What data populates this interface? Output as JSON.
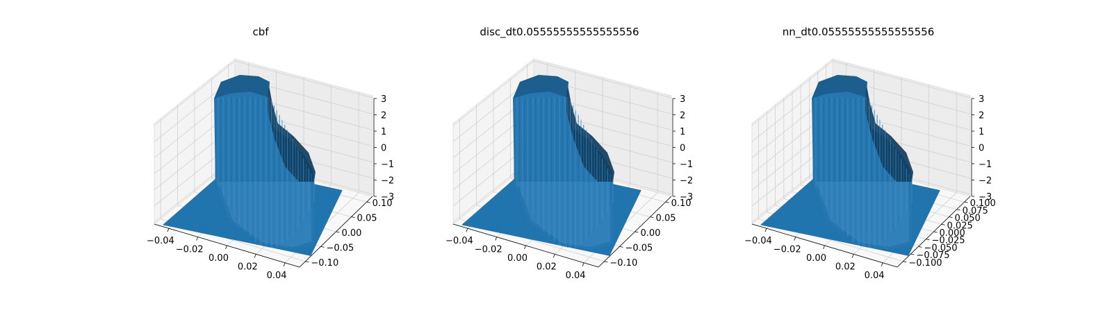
{
  "chart_data": [
    {
      "type": "surface3d",
      "title": "cbf",
      "color": "#1f77b4",
      "x_ticks": [
        "−0.04",
        "−0.02",
        "0.00",
        "0.02",
        "0.04"
      ],
      "y_ticks": [
        "−0.10",
        "−0.05",
        "0.00",
        "0.05",
        "0.10"
      ],
      "z_ticks": [
        "−3",
        "−2",
        "−1",
        "0",
        "1",
        "2",
        "3"
      ],
      "xlim": [
        -0.05,
        0.05
      ],
      "ylim": [
        -0.1,
        0.1
      ],
      "zlim": [
        -3,
        3
      ],
      "grid": true
    },
    {
      "type": "surface3d",
      "title": "disc_dt0.05555555555555556",
      "color": "#1f77b4",
      "x_ticks": [
        "−0.04",
        "−0.02",
        "0.00",
        "0.02",
        "0.04"
      ],
      "y_ticks": [
        "−0.10",
        "−0.05",
        "0.00",
        "0.05",
        "0.10"
      ],
      "z_ticks": [
        "−3",
        "−2",
        "−1",
        "0",
        "1",
        "2",
        "3"
      ],
      "xlim": [
        -0.05,
        0.05
      ],
      "ylim": [
        -0.1,
        0.1
      ],
      "zlim": [
        -3,
        3
      ],
      "grid": true
    },
    {
      "type": "surface3d",
      "title": "nn_dt0.05555555555555556",
      "color": "#1f77b4",
      "x_ticks": [
        "−0.04",
        "−0.02",
        "0.00",
        "0.02",
        "0.04"
      ],
      "y_ticks": [
        "−0.100",
        "−0.075",
        "−0.050",
        "−0.025",
        "0.000",
        "0.025",
        "0.050",
        "0.075",
        "0.100"
      ],
      "z_ticks": [
        "−3",
        "−2",
        "−1",
        "0",
        "1",
        "2",
        "3"
      ],
      "xlim": [
        -0.05,
        0.05
      ],
      "ylim": [
        -0.1,
        0.1
      ],
      "zlim": [
        -3,
        3
      ],
      "grid": true
    }
  ]
}
